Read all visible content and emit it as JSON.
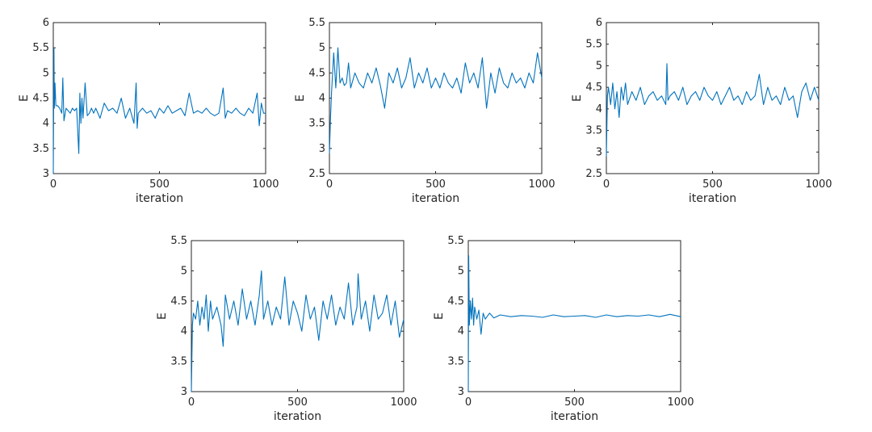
{
  "figure": {
    "line_color": "#0072BD",
    "axis_color": "#262626"
  },
  "chart_data": [
    {
      "type": "line",
      "panel": "top-left",
      "xlabel": "iteration",
      "ylabel": "E",
      "xlim": [
        0,
        1000
      ],
      "ylim": [
        3,
        6
      ],
      "xticks": [
        0,
        500,
        1000
      ],
      "xtick_labels": [
        "0",
        "500",
        "1000"
      ],
      "yticks": [
        3,
        3.5,
        4,
        4.5,
        5,
        5.5,
        6
      ],
      "ytick_labels": [
        "3",
        "3.5",
        "4",
        "4.5",
        "5",
        "5.5",
        "6"
      ],
      "series": [
        {
          "name": "E",
          "x": [
            0,
            3,
            5,
            8,
            12,
            20,
            30,
            40,
            45,
            50,
            60,
            70,
            80,
            90,
            100,
            110,
            120,
            125,
            130,
            135,
            140,
            150,
            160,
            170,
            180,
            190,
            200,
            220,
            240,
            260,
            280,
            300,
            320,
            340,
            360,
            380,
            390,
            395,
            400,
            420,
            440,
            460,
            480,
            500,
            520,
            540,
            560,
            580,
            600,
            620,
            640,
            660,
            680,
            700,
            720,
            740,
            760,
            780,
            800,
            810,
            820,
            840,
            860,
            880,
            900,
            920,
            940,
            960,
            970,
            980,
            990,
            1000
          ],
          "values": [
            3.0,
            5.5,
            4.3,
            4.8,
            4.35,
            4.35,
            4.3,
            4.2,
            4.9,
            4.05,
            4.3,
            4.25,
            4.2,
            4.3,
            4.25,
            4.3,
            3.4,
            4.6,
            4.0,
            4.5,
            4.1,
            4.8,
            4.15,
            4.2,
            4.3,
            4.2,
            4.3,
            4.1,
            4.4,
            4.25,
            4.3,
            4.2,
            4.5,
            4.1,
            4.3,
            4.0,
            4.8,
            3.9,
            4.2,
            4.3,
            4.2,
            4.25,
            4.1,
            4.3,
            4.2,
            4.35,
            4.2,
            4.25,
            4.3,
            4.15,
            4.6,
            4.2,
            4.25,
            4.2,
            4.3,
            4.2,
            4.15,
            4.2,
            4.7,
            4.1,
            4.25,
            4.2,
            4.3,
            4.2,
            4.15,
            4.3,
            4.2,
            4.6,
            3.95,
            4.4,
            4.2,
            4.2
          ]
        }
      ]
    },
    {
      "type": "line",
      "panel": "top-middle",
      "xlabel": "iteration",
      "ylabel": "E",
      "xlim": [
        0,
        1000
      ],
      "ylim": [
        2.5,
        5.5
      ],
      "xticks": [
        0,
        500,
        1000
      ],
      "xtick_labels": [
        "0",
        "500",
        "1000"
      ],
      "yticks": [
        2.5,
        3,
        3.5,
        4,
        4.5,
        5,
        5.5
      ],
      "ytick_labels": [
        "2.5",
        "3",
        "3.5",
        "4",
        "4.5",
        "5",
        "5.5"
      ],
      "series": [
        {
          "name": "E",
          "x": [
            0,
            5,
            10,
            20,
            30,
            40,
            50,
            60,
            70,
            80,
            90,
            100,
            120,
            140,
            160,
            180,
            200,
            220,
            240,
            260,
            280,
            300,
            320,
            340,
            360,
            380,
            400,
            420,
            440,
            460,
            480,
            500,
            520,
            540,
            560,
            580,
            600,
            620,
            640,
            660,
            680,
            700,
            720,
            740,
            760,
            780,
            800,
            820,
            840,
            860,
            880,
            900,
            920,
            940,
            960,
            980,
            1000
          ],
          "values": [
            2.9,
            3.6,
            4.1,
            4.9,
            4.2,
            5.0,
            4.3,
            4.4,
            4.25,
            4.3,
            4.7,
            4.2,
            4.5,
            4.3,
            4.2,
            4.5,
            4.3,
            4.6,
            4.25,
            3.8,
            4.5,
            4.3,
            4.6,
            4.2,
            4.4,
            4.8,
            4.2,
            4.5,
            4.3,
            4.6,
            4.2,
            4.4,
            4.2,
            4.5,
            4.3,
            4.2,
            4.4,
            4.1,
            4.7,
            4.3,
            4.5,
            4.2,
            4.8,
            3.8,
            4.5,
            4.1,
            4.6,
            4.3,
            4.2,
            4.5,
            4.3,
            4.4,
            4.2,
            4.5,
            4.3,
            4.9,
            4.4
          ]
        }
      ]
    },
    {
      "type": "line",
      "panel": "top-right",
      "xlabel": "iteration",
      "ylabel": "E",
      "xlim": [
        0,
        1000
      ],
      "ylim": [
        2.5,
        6
      ],
      "xticks": [
        0,
        500,
        1000
      ],
      "xtick_labels": [
        "0",
        "500",
        "1000"
      ],
      "yticks": [
        2.5,
        3,
        3.5,
        4,
        4.5,
        5,
        5.5,
        6
      ],
      "ytick_labels": [
        "2.5",
        "3",
        "3.5",
        "4",
        "4.5",
        "5",
        "5.5",
        "6"
      ],
      "series": [
        {
          "name": "E",
          "x": [
            0,
            5,
            10,
            20,
            30,
            40,
            50,
            60,
            70,
            80,
            90,
            100,
            120,
            140,
            160,
            180,
            200,
            220,
            240,
            260,
            280,
            285,
            290,
            300,
            320,
            340,
            360,
            380,
            400,
            420,
            440,
            460,
            480,
            500,
            520,
            540,
            560,
            580,
            600,
            620,
            640,
            660,
            680,
            700,
            720,
            740,
            760,
            780,
            800,
            820,
            840,
            860,
            880,
            900,
            920,
            940,
            960,
            980,
            1000
          ],
          "values": [
            2.9,
            4.3,
            4.5,
            4.1,
            4.6,
            4.0,
            4.4,
            3.8,
            4.5,
            4.2,
            4.6,
            4.1,
            4.4,
            4.2,
            4.5,
            4.1,
            4.3,
            4.4,
            4.2,
            4.3,
            4.1,
            5.05,
            4.2,
            4.3,
            4.4,
            4.2,
            4.5,
            4.1,
            4.3,
            4.4,
            4.2,
            4.5,
            4.3,
            4.2,
            4.4,
            4.1,
            4.3,
            4.5,
            4.2,
            4.3,
            4.1,
            4.4,
            4.2,
            4.3,
            4.8,
            4.1,
            4.5,
            4.2,
            4.3,
            4.1,
            4.5,
            4.2,
            4.3,
            3.8,
            4.4,
            4.6,
            4.2,
            4.5,
            4.2
          ]
        }
      ]
    },
    {
      "type": "line",
      "panel": "bottom-left",
      "xlabel": "iteration",
      "ylabel": "E",
      "xlim": [
        0,
        1000
      ],
      "ylim": [
        3,
        5.5
      ],
      "xticks": [
        0,
        500,
        1000
      ],
      "xtick_labels": [
        "0",
        "500",
        "1000"
      ],
      "yticks": [
        3,
        3.5,
        4,
        4.5,
        5,
        5.5
      ],
      "ytick_labels": [
        "3",
        "3.5",
        "4",
        "4.5",
        "5",
        "5.5"
      ],
      "series": [
        {
          "name": "E",
          "x": [
            0,
            5,
            10,
            20,
            30,
            40,
            50,
            60,
            70,
            80,
            90,
            100,
            120,
            140,
            150,
            160,
            180,
            200,
            220,
            240,
            260,
            280,
            300,
            320,
            330,
            340,
            360,
            380,
            400,
            420,
            440,
            460,
            480,
            500,
            520,
            540,
            560,
            580,
            600,
            620,
            640,
            660,
            680,
            700,
            720,
            740,
            760,
            780,
            785,
            800,
            820,
            840,
            860,
            880,
            900,
            920,
            940,
            960,
            980,
            1000
          ],
          "values": [
            3.0,
            4.1,
            4.3,
            4.2,
            4.5,
            4.1,
            4.4,
            4.2,
            4.6,
            4.0,
            4.5,
            4.2,
            4.4,
            4.1,
            3.75,
            4.6,
            4.2,
            4.5,
            4.1,
            4.7,
            4.2,
            4.5,
            4.1,
            4.6,
            5.0,
            4.2,
            4.5,
            4.1,
            4.4,
            4.2,
            4.9,
            4.1,
            4.5,
            4.3,
            4.0,
            4.6,
            4.2,
            4.4,
            3.85,
            4.5,
            4.2,
            4.6,
            4.1,
            4.4,
            4.2,
            4.8,
            4.1,
            4.4,
            4.95,
            4.2,
            4.5,
            4.0,
            4.6,
            4.2,
            4.3,
            4.6,
            4.1,
            4.5,
            3.9,
            4.2
          ]
        }
      ]
    },
    {
      "type": "line",
      "panel": "bottom-right",
      "xlabel": "iteration",
      "ylabel": "E",
      "xlim": [
        0,
        1000
      ],
      "ylim": [
        3,
        5.5
      ],
      "xticks": [
        0,
        500,
        1000
      ],
      "xtick_labels": [
        "0",
        "500",
        "1000"
      ],
      "yticks": [
        3,
        3.5,
        4,
        4.5,
        5,
        5.5
      ],
      "ytick_labels": [
        "3",
        "3.5",
        "4",
        "4.5",
        "5",
        "5.5"
      ],
      "series": [
        {
          "name": "E",
          "x": [
            0,
            2,
            5,
            10,
            15,
            20,
            25,
            30,
            40,
            50,
            60,
            70,
            80,
            100,
            120,
            150,
            200,
            250,
            300,
            350,
            400,
            450,
            500,
            550,
            600,
            650,
            700,
            750,
            800,
            850,
            900,
            950,
            1000
          ],
          "values": [
            3.0,
            5.25,
            4.1,
            4.5,
            4.2,
            4.55,
            4.1,
            4.4,
            4.2,
            4.35,
            3.95,
            4.3,
            4.2,
            4.3,
            4.22,
            4.27,
            4.24,
            4.26,
            4.25,
            4.23,
            4.27,
            4.24,
            4.25,
            4.26,
            4.23,
            4.27,
            4.24,
            4.26,
            4.25,
            4.27,
            4.24,
            4.28,
            4.24
          ]
        }
      ]
    }
  ]
}
